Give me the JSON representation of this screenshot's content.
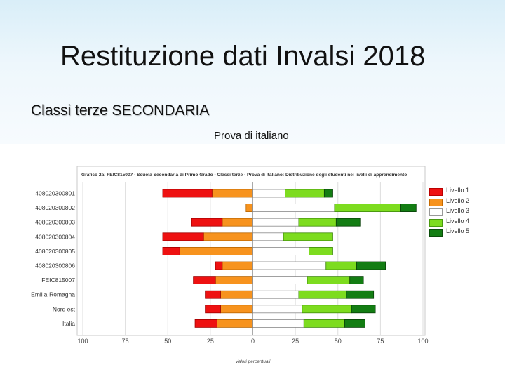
{
  "slide": {
    "title": "Restituzione dati Invalsi 2018",
    "subtitle": "Classi terze SECONDARIA",
    "test_label": "Prova di italiano"
  },
  "colors": {
    "livello1": "#ee1111",
    "livello2": "#f7931e",
    "livello3": "#ffffff",
    "livello4": "#7ddc1f",
    "livello5": "#137d13"
  },
  "chart_data": {
    "type": "bar",
    "orientation": "horizontal",
    "stacked": "diverging",
    "title": "Grafico 2a: FEIC815007 - Scuola Secondaria di Primo Grado - Classi terze - Prova di italiano: Distribuzione degli studenti nei livelli di apprendimento",
    "xlabel": "Valori percentuali",
    "xlim": [
      -100,
      100
    ],
    "xticks": [
      "100",
      "75",
      "50",
      "25",
      "0",
      "25",
      "50",
      "75",
      "100"
    ],
    "xtick_values": [
      -100,
      -75,
      -50,
      -25,
      0,
      25,
      50,
      75,
      100
    ],
    "grid": true,
    "legend_position": "right",
    "categories": [
      "408020300801",
      "408020300802",
      "408020300803",
      "408020300804",
      "408020300805",
      "408020300806",
      "FEIC815007",
      "Emilia-Romagna",
      "Nord est",
      "Italia"
    ],
    "series": [
      {
        "name": "Livello 1",
        "side": "left",
        "values": [
          29,
          0,
          18,
          24,
          10,
          4,
          13,
          9,
          9,
          13
        ]
      },
      {
        "name": "Livello 2",
        "side": "left",
        "values": [
          24,
          4,
          18,
          29,
          43,
          18,
          22,
          19,
          19,
          21
        ]
      },
      {
        "name": "Livello 3",
        "side": "right",
        "values": [
          19,
          48,
          27,
          18,
          33,
          43,
          32,
          27,
          29,
          30
        ]
      },
      {
        "name": "Livello 4",
        "side": "right",
        "values": [
          23,
          39,
          22,
          29,
          14,
          18,
          25,
          28,
          29,
          24
        ]
      },
      {
        "name": "Livello 5",
        "side": "right",
        "values": [
          5,
          9,
          14,
          0,
          0,
          17,
          8,
          16,
          14,
          12
        ]
      }
    ]
  }
}
